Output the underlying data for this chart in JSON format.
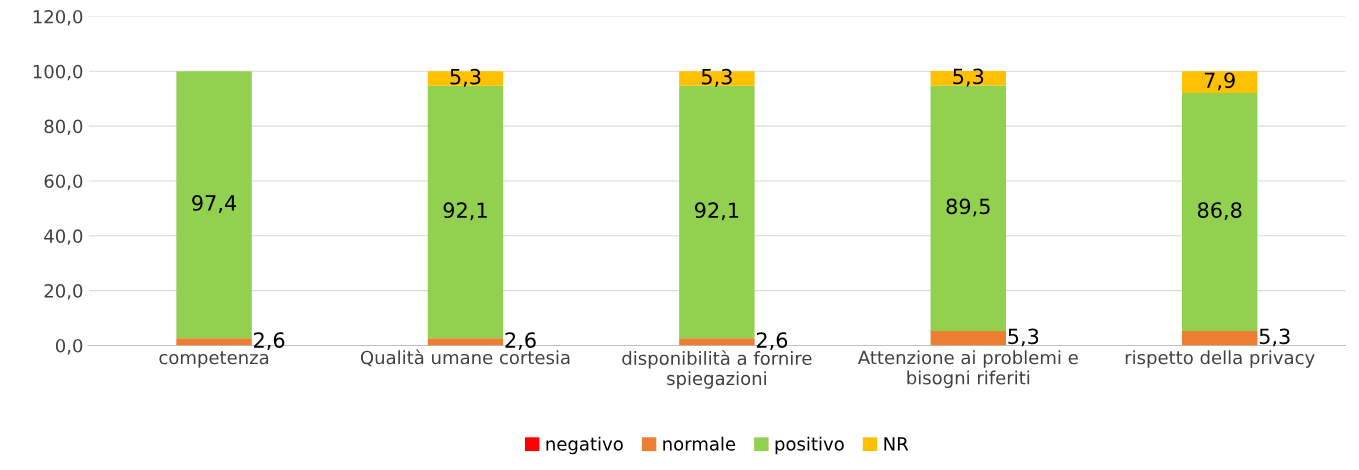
{
  "chart_data": {
    "type": "bar",
    "stacked": true,
    "categories": [
      "competenza",
      "Qualità umane cortesia",
      "disponibilità a fornire\nspiegazioni",
      "Attenzione ai problemi e\nbisogni riferiti",
      "rispetto della privacy"
    ],
    "series": [
      {
        "name": "negativo",
        "color": "#ff0000",
        "values": [
          0,
          0,
          0,
          0,
          0
        ],
        "value_labels": [
          null,
          null,
          null,
          null,
          null
        ]
      },
      {
        "name": "normale",
        "color": "#ed7d31",
        "values": [
          2.6,
          2.6,
          2.6,
          5.3,
          5.3
        ],
        "value_labels": [
          "2,6",
          "2,6",
          "2,6",
          "5,3",
          "5,3"
        ]
      },
      {
        "name": "positivo",
        "color": "#92d050",
        "values": [
          97.4,
          92.1,
          92.1,
          89.5,
          86.8
        ],
        "value_labels": [
          "97,4",
          "92,1",
          "92,1",
          "89,5",
          "86,8"
        ]
      },
      {
        "name": "NR",
        "color": "#ffc000",
        "values": [
          0,
          5.3,
          5.3,
          5.3,
          7.9
        ],
        "value_labels": [
          null,
          "5,3",
          "5,3",
          "5,3",
          "7,9"
        ]
      }
    ],
    "ylim": [
      0,
      120
    ],
    "yticks": [
      {
        "value": 0,
        "label": "0,0"
      },
      {
        "value": 20,
        "label": "20,0"
      },
      {
        "value": 40,
        "label": "40,0"
      },
      {
        "value": 60,
        "label": "60,0"
      },
      {
        "value": 80,
        "label": "80,0"
      },
      {
        "value": 100,
        "label": "100,0"
      },
      {
        "value": 120,
        "label": "120,0"
      }
    ],
    "grid": "y",
    "legend": "bottom"
  }
}
